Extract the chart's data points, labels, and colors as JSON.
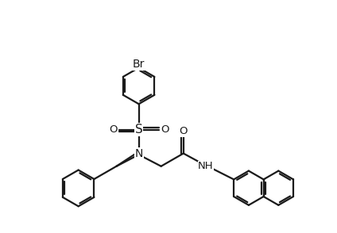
{
  "bg": "#ffffff",
  "lc": "#1a1a1a",
  "lw": 1.6,
  "fs": 9.5,
  "figsize": [
    4.24,
    2.94
  ],
  "dpi": 100,
  "xlim": [
    -4.2,
    6.0
  ],
  "ylim": [
    -3.0,
    3.8
  ]
}
